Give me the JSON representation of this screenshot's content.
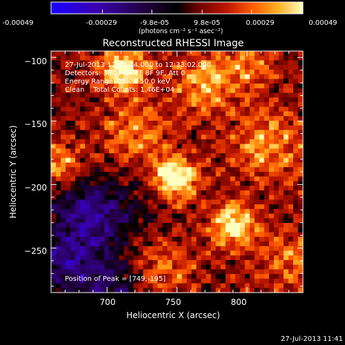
{
  "colorbar": {
    "ticks": [
      "-0.00049",
      "-0.00029",
      "-9.8e-05",
      "9.8e-05",
      "0.00029",
      "0.00049"
    ],
    "tick_values": [
      -0.00049,
      -0.00029,
      -9.8e-05,
      9.8e-05,
      0.00029,
      0.00049
    ],
    "range": [
      -0.00049,
      0.00049
    ],
    "unit_label": "(photons cm⁻² s⁻¹ asec⁻²)",
    "colors": [
      "#1a00ff",
      "#3a00b0",
      "#20003a",
      "#000000",
      "#6a0000",
      "#c01800",
      "#ff5a00",
      "#ffb020",
      "#ffffc0"
    ]
  },
  "annotations": {
    "time": "27-Jul-2013 12:28:04.000 to 12:33:02.000",
    "detectors": "Detectors: 3F 5F 6F 7F 8F 9F, Att 0",
    "energy": "Energy Range: 25.0 - 50.0 keV",
    "clean": "Clean    Total Counts: 1.46E+04",
    "peak": "Position of Peak = [749,-195]"
  },
  "footer": {
    "timestamp": "27-Jul-2013 11:41"
  },
  "chart_data": {
    "type": "heatmap",
    "title": "Reconstructed RHESSI Image",
    "xlabel": "Heliocentric X (arcsec)",
    "ylabel": "Heliocentric Y (arcsec)",
    "xlim": [
      660,
      840
    ],
    "ylim": [
      -285,
      -95
    ],
    "xticks": [
      700,
      750,
      800
    ],
    "yticks": [
      -100,
      -150,
      -200,
      -250
    ],
    "xtick_labels": [
      "700",
      "750",
      "800"
    ],
    "ytick_labels": [
      "−100",
      "−150",
      "−200",
      "−250"
    ],
    "peak": {
      "x": 749,
      "y": -195
    },
    "sources": [
      {
        "x": 749,
        "y": -195,
        "amp": 1.0,
        "sigma": 11
      },
      {
        "x": 712,
        "y": -110,
        "amp": 0.85,
        "sigma": 12
      },
      {
        "x": 790,
        "y": -232,
        "amp": 0.85,
        "sigma": 12
      },
      {
        "x": 770,
        "y": -120,
        "amp": 0.55,
        "sigma": 16
      },
      {
        "x": 665,
        "y": -185,
        "amp": 0.6,
        "sigma": 12
      },
      {
        "x": 815,
        "y": -170,
        "amp": 0.5,
        "sigma": 20
      },
      {
        "x": 720,
        "y": -160,
        "amp": 0.45,
        "sigma": 18
      },
      {
        "x": 830,
        "y": -260,
        "amp": 0.4,
        "sigma": 16
      },
      {
        "x": 740,
        "y": -265,
        "amp": 0.35,
        "sigma": 18
      },
      {
        "x": 800,
        "y": -105,
        "amp": 0.4,
        "sigma": 14
      },
      {
        "x": 690,
        "y": -225,
        "amp": -0.7,
        "sigma": 22
      },
      {
        "x": 670,
        "y": -265,
        "amp": -0.6,
        "sigma": 18
      },
      {
        "x": 705,
        "y": -280,
        "amp": -0.45,
        "sigma": 14
      }
    ]
  }
}
